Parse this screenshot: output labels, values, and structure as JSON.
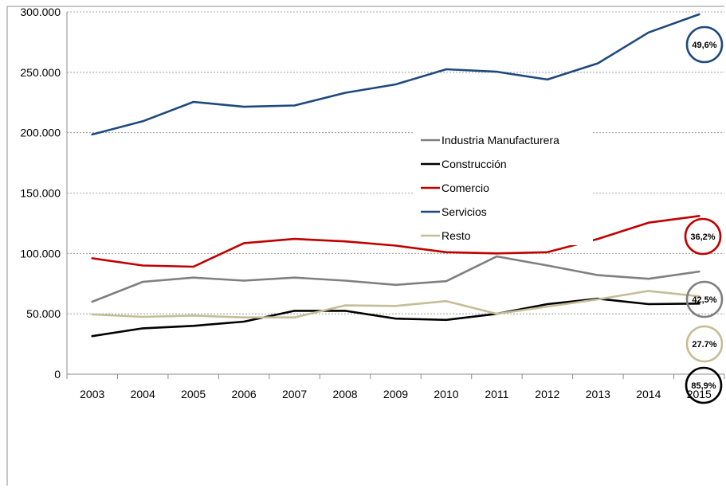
{
  "chart_data": {
    "type": "line",
    "title": "",
    "xlabel": "",
    "ylabel": "",
    "ylim": [
      0,
      300000
    ],
    "y_ticks": [
      {
        "value": 0,
        "label": "0"
      },
      {
        "value": 50000,
        "label": "50.000"
      },
      {
        "value": 100000,
        "label": "100.000"
      },
      {
        "value": 150000,
        "label": "150.000"
      },
      {
        "value": 200000,
        "label": "200.000"
      },
      {
        "value": 250000,
        "label": "250.000"
      },
      {
        "value": 300000,
        "label": "300.000"
      }
    ],
    "grid": true,
    "legend_position": "center-right",
    "categories": [
      "2003",
      "2004",
      "2005",
      "2006",
      "2007",
      "2008",
      "2009",
      "2010",
      "2011",
      "2012",
      "2013",
      "2014",
      "2015"
    ],
    "series": [
      {
        "name": "Industria Manufacturera",
        "color": "#7f7f7f",
        "values": [
          60000,
          76500,
          80000,
          77500,
          80000,
          77500,
          74000,
          77000,
          97500,
          90000,
          82000,
          79000,
          85000
        ]
      },
      {
        "name": "Construcción",
        "color": "#000000",
        "values": [
          31500,
          38000,
          40000,
          43500,
          52500,
          52500,
          46000,
          45000,
          50000,
          58000,
          62500,
          58000,
          58500
        ]
      },
      {
        "name": "Comercio",
        "color": "#c00000",
        "values": [
          96000,
          90000,
          89000,
          108500,
          112000,
          110000,
          106500,
          101000,
          100000,
          101000,
          112000,
          125500,
          131000
        ]
      },
      {
        "name": "Servicios",
        "color": "#1f497d",
        "values": [
          198500,
          209500,
          225500,
          221500,
          222500,
          233000,
          240000,
          252500,
          250500,
          244000,
          257500,
          283000,
          298000
        ]
      },
      {
        "name": "Resto",
        "color": "#c4bd97",
        "values": [
          49500,
          47500,
          48500,
          47000,
          47000,
          57000,
          56500,
          60500,
          50000,
          56000,
          62000,
          69000,
          64500
        ]
      }
    ],
    "annotations": [
      {
        "text": "49,6%",
        "color": "#1f497d"
      },
      {
        "text": "36,2%",
        "color": "#c00000"
      },
      {
        "text": "42,5%",
        "color": "#7f7f7f"
      },
      {
        "text": "27.7%",
        "color": "#c4bd97"
      },
      {
        "text": "85,9%",
        "color": "#000000"
      }
    ]
  }
}
